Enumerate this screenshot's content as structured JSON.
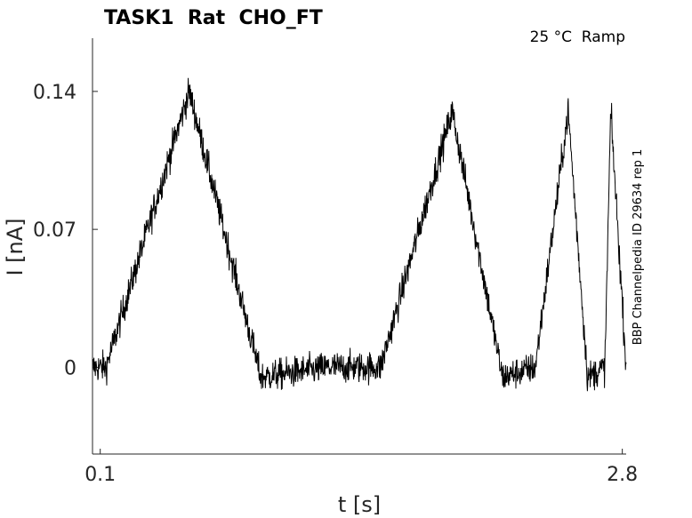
{
  "chart_data": {
    "type": "line",
    "title": "TASK1  Rat  CHO_FT",
    "condition": "25 °C  Ramp",
    "side_label": "BBP Channelpedia ID 29634 rep 1",
    "xlabel": "t [s]",
    "ylabel": "I [nA]",
    "xlim": [
      0.06,
      2.82
    ],
    "ylim": [
      -0.044,
      0.167
    ],
    "x_ticks": [
      {
        "value": 0.1,
        "label": "0.1"
      },
      {
        "value": 2.8,
        "label": "2.8"
      }
    ],
    "y_ticks": [
      {
        "value": 0.14,
        "label": "0.14"
      },
      {
        "value": 0.07,
        "label": "0.07"
      },
      {
        "value": 0,
        "label": "0"
      }
    ],
    "grid": false,
    "color": "#000000",
    "series": [
      {
        "x": [
          0.06,
          0.1,
          0.13,
          0.56,
          0.93,
          1.28,
          1.55,
          1.92,
          2.18,
          2.35,
          2.52,
          2.62,
          2.71,
          2.74,
          2.82
        ],
        "y": [
          0.0,
          0.0,
          0.0,
          0.14,
          -0.005,
          0.0,
          0.0,
          0.13,
          -0.005,
          0.0,
          0.13,
          -0.005,
          0.0,
          0.13,
          0.0
        ],
        "noise_sd": 0.004
      }
    ]
  }
}
